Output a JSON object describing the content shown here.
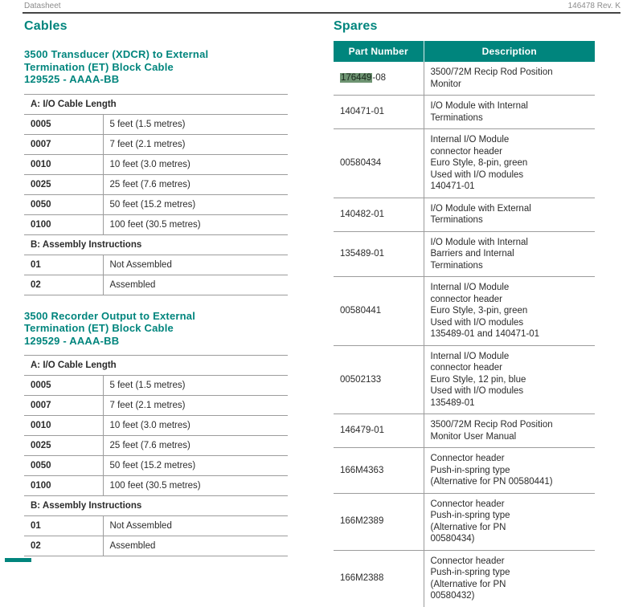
{
  "header": {
    "left": "Datasheet",
    "right": "146478 Rev. K"
  },
  "colors": {
    "accent_teal": "#00857D",
    "table_line": "#9C9C9C",
    "text": "#2B2B2B",
    "header_gray": "#8C8C8C",
    "rule_dark": "#454545",
    "highlight_green": "#6E9472"
  },
  "cables": {
    "heading": "Cables",
    "sections": [
      {
        "title": "3500 Transducer (XDCR) to External\nTermination (ET) Block Cable\n129525 - AAAA-BB",
        "groups": [
          {
            "header": "A: I/O Cable Length",
            "rows": [
              [
                "0005",
                "5 feet (1.5 metres)"
              ],
              [
                "0007",
                "7 feet (2.1 metres)"
              ],
              [
                "0010",
                "10 feet (3.0 metres)"
              ],
              [
                "0025",
                "25 feet (7.6 metres)"
              ],
              [
                "0050",
                "50 feet (15.2 metres)"
              ],
              [
                "0100",
                "100 feet (30.5 metres)"
              ]
            ]
          },
          {
            "header": "B: Assembly Instructions",
            "rows": [
              [
                "01",
                "Not Assembled"
              ],
              [
                "02",
                "Assembled"
              ]
            ]
          }
        ]
      },
      {
        "title": "3500 Recorder Output to External\nTermination (ET) Block Cable\n129529 - AAAA-BB",
        "groups": [
          {
            "header": "A: I/O Cable Length",
            "rows": [
              [
                "0005",
                "5 feet (1.5 metres)"
              ],
              [
                "0007",
                "7 feet (2.1 metres)"
              ],
              [
                "0010",
                "10 feet (3.0 metres)"
              ],
              [
                "0025",
                "25 feet (7.6 metres)"
              ],
              [
                "0050",
                "50 feet (15.2 metres)"
              ],
              [
                "0100",
                "100 feet (30.5 metres)"
              ]
            ]
          },
          {
            "header": "B: Assembly Instructions",
            "rows": [
              [
                "01",
                "Not Assembled"
              ],
              [
                "02",
                "Assembled"
              ]
            ]
          }
        ]
      }
    ]
  },
  "spares": {
    "heading": "Spares",
    "columns": [
      "Part Number",
      "Description"
    ],
    "rows": [
      {
        "highlight": "176449",
        "rest": "-08",
        "description": "3500/72M Recip Rod Position\nMonitor"
      },
      {
        "part": "140471-01",
        "description": "I/O Module with Internal\nTerminations"
      },
      {
        "part": "00580434",
        "description": "Internal I/O Module\nconnector header\nEuro Style, 8-pin, green\nUsed with I/O modules\n140471-01"
      },
      {
        "part": "140482-01",
        "description": "I/O Module with External\nTerminations"
      },
      {
        "part": "135489-01",
        "description": "I/O Module with Internal\nBarriers and Internal\nTerminations"
      },
      {
        "part": "00580441",
        "description": "Internal I/O Module\nconnector header\nEuro Style, 3-pin, green\nUsed with I/O modules\n135489-01 and 140471-01"
      },
      {
        "part": "00502133",
        "description": "Internal I/O Module\nconnector header\nEuro Style, 12 pin, blue\nUsed with I/O modules\n135489-01"
      },
      {
        "part": "146479-01",
        "description": "3500/72M Recip Rod Position\nMonitor User Manual"
      },
      {
        "part": "166M4363",
        "description": "Connector header\nPush-in-spring type\n(Alternative for PN 00580441)"
      },
      {
        "part": "166M2389",
        "description": "Connector header\nPush-in-spring type\n(Alternative for PN\n00580434)"
      },
      {
        "part": "166M2388",
        "description": "Connector header\nPush-in-spring type\n(Alternative for PN\n00580432)"
      }
    ]
  }
}
